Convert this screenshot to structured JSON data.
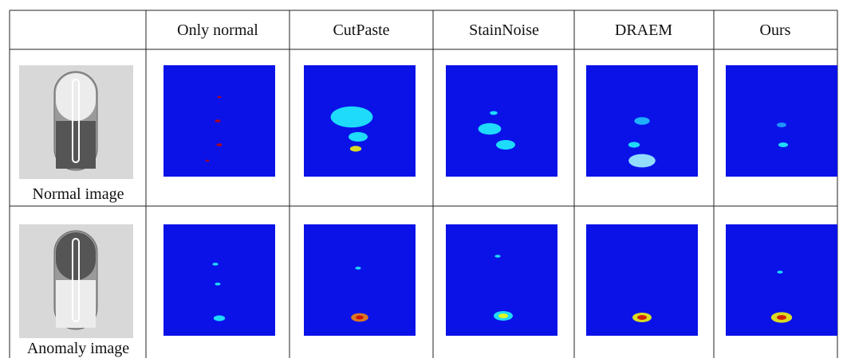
{
  "table": {
    "columns": [
      "Only normal",
      "CutPaste",
      "StainNoise",
      "DRAEM",
      "Ours"
    ],
    "rows": [
      {
        "label": "Normal image"
      },
      {
        "label": "Anomaly image"
      }
    ]
  }
}
